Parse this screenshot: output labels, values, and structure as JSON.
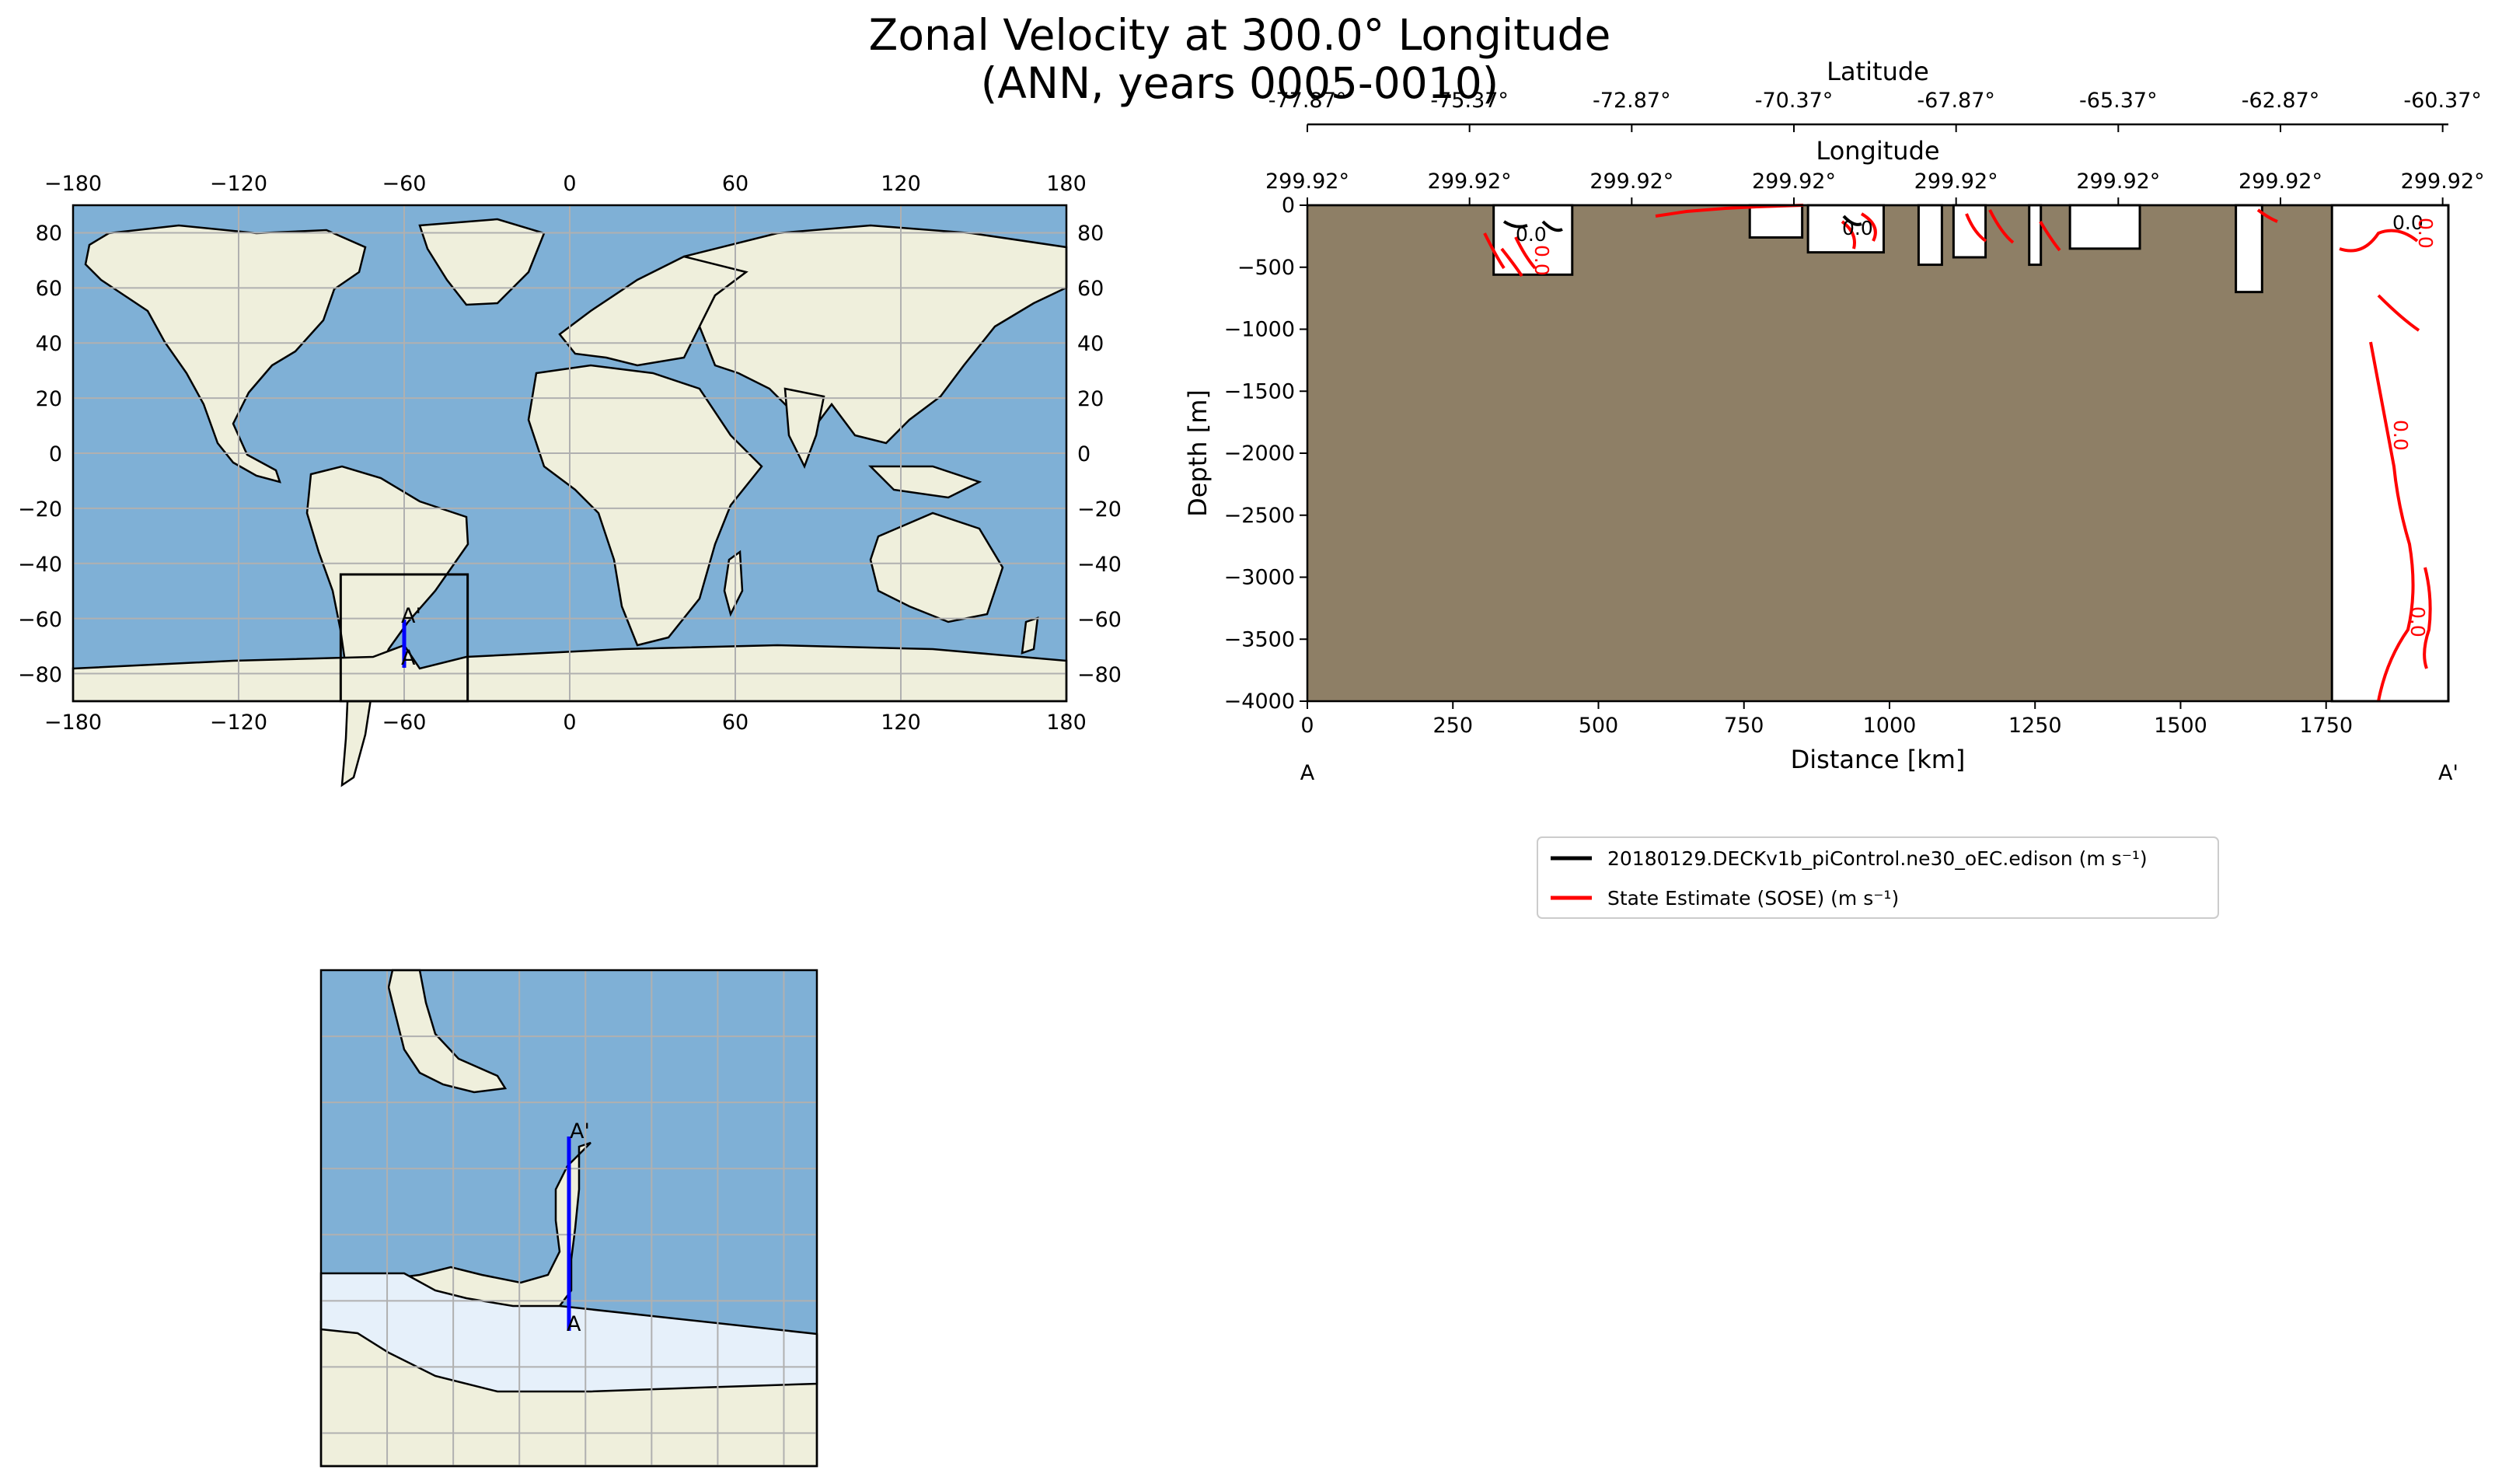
{
  "title": {
    "line1": "Zonal Velocity at 300.0° Longitude",
    "line2": "(ANN, years 0005-0010)"
  },
  "colors": {
    "ocean": "#7fb0d6",
    "land": "#efefdc",
    "bathymetry_fill": "#8e7f66",
    "model_line": "#000000",
    "obs_line": "#ff0000",
    "transect": "#0000ff",
    "ice_shelf": "#e6f0fa"
  },
  "chart_data": [
    {
      "type": "map",
      "name": "global-map",
      "projection": "PlateCarree",
      "xlim": [
        -180,
        180
      ],
      "ylim": [
        -90,
        90
      ],
      "xticks": [
        "−180",
        "−120",
        "−60",
        "0",
        "60",
        "120",
        "180"
      ],
      "yticks": [
        "80",
        "60",
        "40",
        "20",
        "0",
        "−20",
        "−40",
        "−60",
        "−80"
      ],
      "grid": true,
      "transect": {
        "start_label": "A",
        "end_label": "A'",
        "lon": [
          -60,
          -60
        ],
        "lat": [
          -77.87,
          -60.37
        ]
      },
      "inset_box": {
        "lon": [
          -83,
          -37
        ],
        "lat": [
          -90,
          -44
        ]
      }
    },
    {
      "type": "map",
      "name": "inset-map",
      "projection": "PlateCarree",
      "grid": true,
      "transect": {
        "start_label": "A",
        "end_label": "A'"
      }
    },
    {
      "type": "contour",
      "name": "section",
      "xlabel": "Distance [km]",
      "ylabel": "Depth [m]",
      "xlim": [
        0,
        1960
      ],
      "ylim": [
        -4000,
        0
      ],
      "xticks": [
        0,
        250,
        500,
        750,
        1000,
        1250,
        1500,
        1750
      ],
      "yticks": [
        0,
        -500,
        -1000,
        -1500,
        -2000,
        -2500,
        -3000,
        -3500,
        -4000
      ],
      "endpoint_labels": [
        "A",
        "A'"
      ],
      "latitude_axis": {
        "label": "Latitude",
        "ticks": [
          "-77.87°",
          "-75.37°",
          "-72.87°",
          "-70.37°",
          "-67.87°",
          "-65.37°",
          "-62.87°",
          "-60.37°"
        ]
      },
      "longitude_axis": {
        "label": "Longitude",
        "ticks": [
          "299.92°",
          "299.92°",
          "299.92°",
          "299.92°",
          "299.92°",
          "299.92°",
          "299.92°",
          "299.92°"
        ]
      },
      "contour_label": "0.0",
      "ocean_windows": [
        {
          "x": [
            320,
            455
          ],
          "depth": [
            0,
            -560
          ]
        },
        {
          "x": [
            760,
            850
          ],
          "depth": [
            0,
            -260
          ]
        },
        {
          "x": [
            860,
            990
          ],
          "depth": [
            0,
            -380
          ]
        },
        {
          "x": [
            1050,
            1090
          ],
          "depth": [
            0,
            -480
          ]
        },
        {
          "x": [
            1110,
            1165
          ],
          "depth": [
            0,
            -420
          ]
        },
        {
          "x": [
            1240,
            1260
          ],
          "depth": [
            0,
            -480
          ]
        },
        {
          "x": [
            1310,
            1430
          ],
          "depth": [
            0,
            -350
          ]
        },
        {
          "x": [
            1595,
            1640
          ],
          "depth": [
            0,
            -700
          ]
        },
        {
          "x": [
            1760,
            1960
          ],
          "depth": [
            0,
            -4000
          ]
        }
      ],
      "series": [
        {
          "name": "20180129.DECKv1b_piControl.ne30_oEC.edison (m s⁻¹)",
          "color": "#000000"
        },
        {
          "name": "State Estimate (SOSE) (m s⁻¹)",
          "color": "#ff0000"
        }
      ],
      "legend_position": "below-plot"
    }
  ]
}
